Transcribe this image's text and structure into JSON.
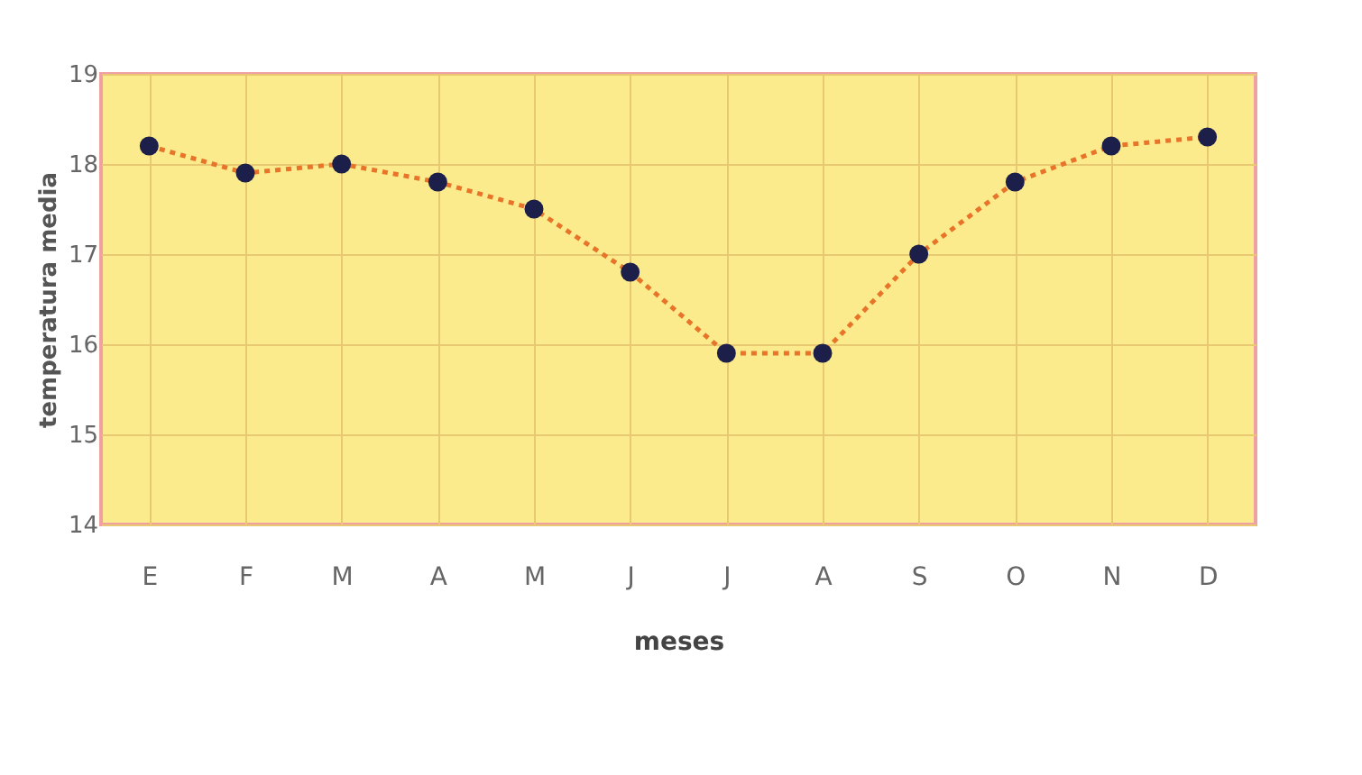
{
  "chart_data": {
    "type": "line",
    "xlabel": "meses",
    "ylabel": "temperatura media",
    "categories": [
      "E",
      "F",
      "M",
      "A",
      "M",
      "J",
      "J",
      "A",
      "S",
      "O",
      "N",
      "D"
    ],
    "series": [
      {
        "color": "#1c1f4a",
        "values": [
          18.2,
          17.9,
          18.0,
          17.8,
          17.5,
          16.8,
          15.9,
          15.9,
          17.0,
          17.8,
          18.2,
          18.3
        ]
      }
    ],
    "ylim": [
      14,
      19
    ],
    "yticks": [
      14,
      15,
      16,
      17,
      18,
      19
    ],
    "grid": true,
    "marker": "circle",
    "line_style": "dotted"
  }
}
